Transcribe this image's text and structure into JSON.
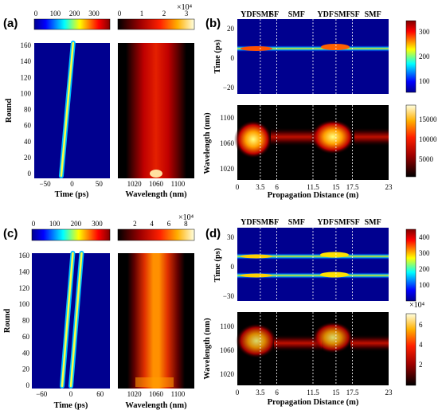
{
  "chart_data": [
    {
      "panel": "(a)",
      "type": "heatmap",
      "left": {
        "colorbar_ticks": [
          "0",
          "100",
          "200",
          "300"
        ],
        "x_ticks": [
          "−50",
          "0",
          "50"
        ],
        "y_ticks": [
          "0",
          "20",
          "40",
          "60",
          "80",
          "100",
          "120",
          "140",
          "160"
        ],
        "xlabel": "Time (ps)",
        "ylabel": "Round",
        "xlim": [
          -70,
          70
        ],
        "ylim": [
          0,
          165
        ],
        "pulses": [
          {
            "start_time": -20,
            "end_time": 2,
            "start_round": 3,
            "end_round": 165
          }
        ]
      },
      "right": {
        "colorbar_ticks": [
          "0",
          "1",
          "2",
          "3"
        ],
        "colorbar_exponent": "×10⁴",
        "x_ticks": [
          "1020",
          "1060",
          "1100"
        ],
        "xlabel": "Wavelength (nm)",
        "xlim": [
          990,
          1130
        ],
        "band_center": 1065,
        "band_halfwidth": 30
      }
    },
    {
      "panel": "(b)",
      "type": "heatmap",
      "sections": [
        "YDF",
        "SMF",
        "SF",
        "SMF",
        "YDF",
        "SMF",
        "SF",
        "SMF"
      ],
      "top": {
        "ylabel": "Time (ps)",
        "y_ticks": [
          "−20",
          "0",
          "20"
        ],
        "colorbar_ticks": [
          "100",
          "200",
          "300"
        ]
      },
      "bottom": {
        "ylabel": "Wavelength (nm)",
        "y_ticks": [
          "1020",
          "1060",
          "1100"
        ],
        "colorbar_ticks": [
          "5000",
          "10000",
          "15000"
        ]
      },
      "x_ticks": [
        "0",
        "3.5",
        "6",
        "11.5",
        "15",
        "17.5",
        "23"
      ],
      "xlabel": "Propagation Distance (m)",
      "xlim": [
        0,
        23
      ],
      "boundaries_m": [
        3.5,
        6,
        11.5,
        15,
        17.5
      ]
    },
    {
      "panel": "(c)",
      "type": "heatmap",
      "left": {
        "colorbar_ticks": [
          "0",
          "100",
          "200",
          "300"
        ],
        "x_ticks": [
          "−60",
          "0",
          "60"
        ],
        "y_ticks": [
          "0",
          "20",
          "40",
          "60",
          "80",
          "100",
          "120",
          "140",
          "160"
        ],
        "xlabel": "Time (ps)",
        "ylabel": "Round",
        "xlim": [
          -80,
          80
        ],
        "ylim": [
          0,
          162
        ],
        "pulses": [
          {
            "start_time": -18,
            "end_time": 4,
            "start_round": 3,
            "end_round": 162
          },
          {
            "start_time": 0,
            "end_time": 22,
            "start_round": 3,
            "end_round": 162
          }
        ]
      },
      "right": {
        "colorbar_ticks": [
          "2",
          "4",
          "6",
          "8"
        ],
        "colorbar_exponent": "×10⁴",
        "x_ticks": [
          "1020",
          "1060",
          "1100"
        ],
        "xlabel": "Wavelength (nm)",
        "xlim": [
          990,
          1130
        ],
        "band_center": 1065,
        "band_halfwidth": 28
      }
    },
    {
      "panel": "(d)",
      "type": "heatmap",
      "sections": [
        "YDF",
        "SMF",
        "SF",
        "SMF",
        "YDF",
        "SMF",
        "SF",
        "SMF"
      ],
      "top": {
        "ylabel": "Time (ps)",
        "y_ticks": [
          "−30",
          "0",
          "30"
        ],
        "colorbar_ticks": [
          "100",
          "200",
          "300",
          "400"
        ]
      },
      "bottom": {
        "ylabel": "Wavelength (nm)",
        "y_ticks": [
          "1020",
          "1060",
          "1100"
        ],
        "colorbar_ticks": [
          "2",
          "4",
          "6"
        ],
        "colorbar_exponent": "×10⁴"
      },
      "x_ticks": [
        "0",
        "3.5",
        "6",
        "11.5",
        "15",
        "17.5",
        "23"
      ],
      "xlabel": "Propagation Distance (m)",
      "xlim": [
        0,
        23
      ],
      "boundaries_m": [
        3.5,
        6,
        11.5,
        15,
        17.5
      ]
    }
  ],
  "colors": {
    "jet": [
      "#00008f",
      "#0000ff",
      "#00ffff",
      "#ffff00",
      "#ff0000",
      "#800000"
    ],
    "hot": [
      "#000000",
      "#7a0000",
      "#e60000",
      "#ff8000",
      "#ffff40",
      "#ffffe0"
    ]
  }
}
